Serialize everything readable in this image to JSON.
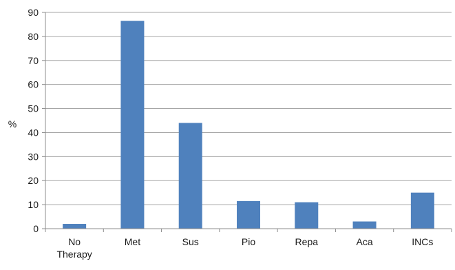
{
  "chart_data": {
    "type": "bar",
    "title": "",
    "xlabel": "",
    "ylabel": "%",
    "ylim": [
      0,
      90
    ],
    "yticks": [
      0,
      10,
      20,
      30,
      40,
      50,
      60,
      70,
      80,
      90
    ],
    "grid": true,
    "legend": "none",
    "bar_color": "#4f81bd",
    "categories": [
      [
        "No",
        "Therapy"
      ],
      [
        "Met"
      ],
      [
        "Sus"
      ],
      [
        "Pio"
      ],
      [
        "Repa"
      ],
      [
        "Aca"
      ],
      [
        "INCs"
      ]
    ],
    "values": [
      2,
      86.5,
      44,
      11.5,
      11,
      3,
      15
    ]
  }
}
